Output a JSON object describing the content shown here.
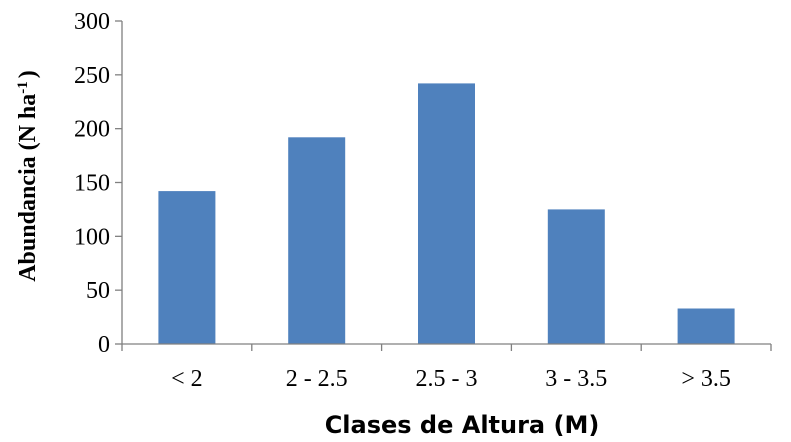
{
  "chart_data": {
    "type": "bar",
    "categories": [
      "< 2",
      "2 - 2.5",
      "2.5 - 3",
      "3 - 3.5",
      "> 3.5"
    ],
    "values": [
      142,
      192,
      242,
      125,
      33
    ],
    "title": "",
    "xlabel": "Clases de Altura (M)",
    "ylabel": {
      "prefix": "Abundancia (N ha",
      "superscript": "-1",
      "suffix": ")"
    },
    "ylim": [
      0,
      300
    ],
    "yticks": [
      "0",
      "50",
      "100",
      "150",
      "200",
      "250",
      "300"
    ],
    "bar_color": "#4f81bd",
    "grid": false,
    "legend": "none"
  }
}
